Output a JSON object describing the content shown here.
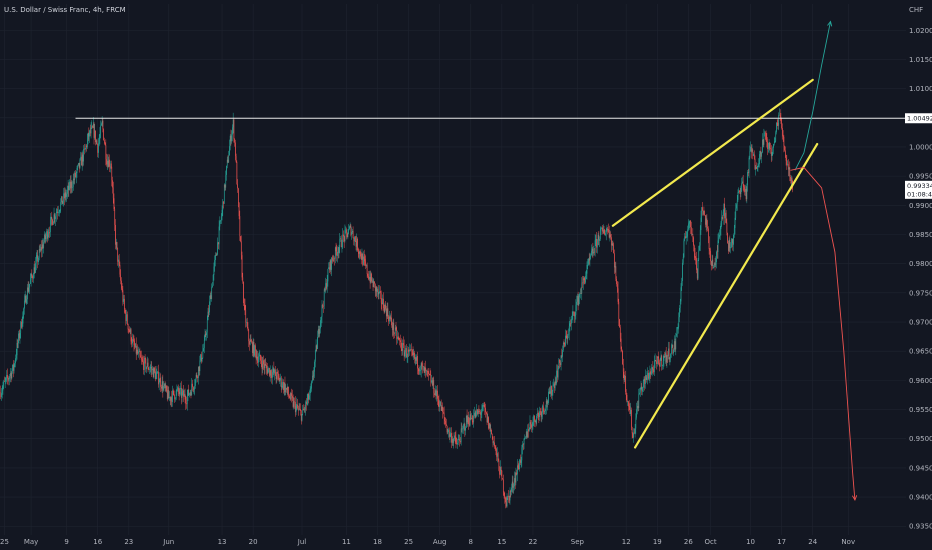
{
  "header": {
    "symbol_title": "U.S. Dollar / Swiss Franc, 4h, FRCM",
    "currency": "CHF"
  },
  "colors": {
    "background": "#131722",
    "grid": "#1f2430",
    "bull": "#26a69a",
    "bear": "#ef5350",
    "wedge": "#f2e94e",
    "resistance": "#e8e8e8",
    "projection_up": "#26a69a",
    "projection_down": "#ef5350",
    "price_tag_bg": "#ffffff",
    "price_tag_text": "#131722"
  },
  "price_tags": {
    "resistance_label": "1.00492",
    "current_price": "0.99334",
    "countdown": "01:08:45"
  },
  "chart_data": {
    "type": "candlestick",
    "title": "U.S. Dollar / Swiss Franc, 4h, FRCM",
    "ylabel": "CHF",
    "ylim": [
      0.9335,
      1.0245
    ],
    "y_ticks": [
      1.02,
      1.015,
      1.01,
      1.005,
      1.0,
      0.995,
      0.99,
      0.985,
      0.98,
      0.975,
      0.97,
      0.965,
      0.96,
      0.955,
      0.95,
      0.945,
      0.94,
      0.935
    ],
    "y_tick_labels": [
      "1.02000",
      "1.01500",
      "1.01000",
      "1.00500",
      "1.00000",
      "0.99500",
      "0.99000",
      "0.98500",
      "0.98000",
      "0.97500",
      "0.97000",
      "0.96500",
      "0.96000",
      "0.95500",
      "0.95000",
      "0.94500",
      "0.94000",
      "0.93500"
    ],
    "x_ticks": [
      {
        "label": "25",
        "day": -6
      },
      {
        "label": "May",
        "day": 0
      },
      {
        "label": "9",
        "day": 8
      },
      {
        "label": "16",
        "day": 15
      },
      {
        "label": "23",
        "day": 22
      },
      {
        "label": "Jun",
        "day": 31
      },
      {
        "label": "13",
        "day": 43
      },
      {
        "label": "20",
        "day": 50
      },
      {
        "label": "Jul",
        "day": 61
      },
      {
        "label": "11",
        "day": 71
      },
      {
        "label": "18",
        "day": 78
      },
      {
        "label": "25",
        "day": 85
      },
      {
        "label": "Aug",
        "day": 92
      },
      {
        "label": "8",
        "day": 99
      },
      {
        "label": "15",
        "day": 106
      },
      {
        "label": "22",
        "day": 113
      },
      {
        "label": "Sep",
        "day": 123
      },
      {
        "label": "12",
        "day": 134
      },
      {
        "label": "19",
        "day": 141
      },
      {
        "label": "26",
        "day": 148
      },
      {
        "label": "Oct",
        "day": 153
      },
      {
        "label": "10",
        "day": 162
      },
      {
        "label": "17",
        "day": 169
      },
      {
        "label": "24",
        "day": 176
      },
      {
        "label": "Nov",
        "day": 184
      }
    ],
    "x_range_days": [
      -7,
      197
    ],
    "price_path": [
      [
        -7,
        0.958
      ],
      [
        -4,
        0.962
      ],
      [
        -1,
        0.975
      ],
      [
        2,
        0.982
      ],
      [
        5,
        0.988
      ],
      [
        8,
        0.992
      ],
      [
        10,
        0.995
      ],
      [
        12,
        0.999
      ],
      [
        13,
        1.002
      ],
      [
        14,
        1.003
      ],
      [
        15,
        1.0
      ],
      [
        16,
        1.004
      ],
      [
        17,
        0.998
      ],
      [
        18,
        0.997
      ],
      [
        19,
        0.984
      ],
      [
        21,
        0.972
      ],
      [
        23,
        0.966
      ],
      [
        25,
        0.963
      ],
      [
        27,
        0.962
      ],
      [
        29,
        0.96
      ],
      [
        31,
        0.957
      ],
      [
        33,
        0.958
      ],
      [
        35,
        0.957
      ],
      [
        37,
        0.96
      ],
      [
        39,
        0.966
      ],
      [
        41,
        0.978
      ],
      [
        43,
        0.989
      ],
      [
        44,
        0.996
      ],
      [
        45,
        1.002
      ],
      [
        45.5,
        1.004
      ],
      [
        46,
        0.999
      ],
      [
        47,
        0.985
      ],
      [
        48,
        0.972
      ],
      [
        49,
        0.967
      ],
      [
        51,
        0.964
      ],
      [
        53,
        0.962
      ],
      [
        55,
        0.961
      ],
      [
        57,
        0.959
      ],
      [
        59,
        0.956
      ],
      [
        61,
        0.954
      ],
      [
        63,
        0.958
      ],
      [
        65,
        0.97
      ],
      [
        67,
        0.979
      ],
      [
        68,
        0.981
      ],
      [
        70,
        0.984
      ],
      [
        72,
        0.986
      ],
      [
        74,
        0.982
      ],
      [
        76,
        0.978
      ],
      [
        78,
        0.975
      ],
      [
        80,
        0.972
      ],
      [
        82,
        0.968
      ],
      [
        84,
        0.965
      ],
      [
        86,
        0.964
      ],
      [
        88,
        0.962
      ],
      [
        90,
        0.96
      ],
      [
        92,
        0.956
      ],
      [
        94,
        0.951
      ],
      [
        96,
        0.949
      ],
      [
        98,
        0.953
      ],
      [
        100,
        0.954
      ],
      [
        102,
        0.955
      ],
      [
        104,
        0.95
      ],
      [
        106,
        0.943
      ],
      [
        107,
        0.939
      ],
      [
        108,
        0.941
      ],
      [
        110,
        0.946
      ],
      [
        112,
        0.952
      ],
      [
        114,
        0.954
      ],
      [
        116,
        0.956
      ],
      [
        118,
        0.96
      ],
      [
        120,
        0.966
      ],
      [
        122,
        0.971
      ],
      [
        124,
        0.976
      ],
      [
        126,
        0.981
      ],
      [
        128,
        0.985
      ],
      [
        130,
        0.986
      ],
      [
        131,
        0.983
      ],
      [
        132,
        0.975
      ],
      [
        133,
        0.964
      ],
      [
        134,
        0.958
      ],
      [
        135,
        0.954
      ],
      [
        135.5,
        0.95
      ],
      [
        137,
        0.958
      ],
      [
        139,
        0.961
      ],
      [
        141,
        0.963
      ],
      [
        143,
        0.964
      ],
      [
        145,
        0.966
      ],
      [
        146,
        0.972
      ],
      [
        147,
        0.983
      ],
      [
        148,
        0.987
      ],
      [
        149,
        0.985
      ],
      [
        150,
        0.978
      ],
      [
        151,
        0.99
      ],
      [
        152,
        0.987
      ],
      [
        153,
        0.981
      ],
      [
        154,
        0.979
      ],
      [
        155,
        0.986
      ],
      [
        156,
        0.99
      ],
      [
        157,
        0.983
      ],
      [
        158,
        0.984
      ],
      [
        159,
        0.991
      ],
      [
        160,
        0.994
      ],
      [
        161,
        0.992
      ],
      [
        162,
        1.0
      ],
      [
        163,
        0.997
      ],
      [
        164,
        0.998
      ],
      [
        165,
        1.002
      ],
      [
        166,
        1.0
      ],
      [
        167,
        0.999
      ],
      [
        168,
        1.004
      ],
      [
        168.5,
        1.006
      ],
      [
        169,
        1.003
      ],
      [
        170,
        0.998
      ],
      [
        171,
        0.995
      ],
      [
        171.5,
        0.9933
      ]
    ],
    "resistance_level": 1.00492,
    "wedge_upper": [
      [
        131,
        0.9865
      ],
      [
        176,
        1.0115
      ]
    ],
    "wedge_lower": [
      [
        136,
        0.9485
      ],
      [
        177,
        1.0005
      ]
    ],
    "projection_up": [
      [
        172,
        0.996
      ],
      [
        174,
        0.999
      ],
      [
        176,
        1.006
      ],
      [
        178,
        1.014
      ],
      [
        180,
        1.0215
      ]
    ],
    "projection_down": [
      [
        171,
        0.996
      ],
      [
        174,
        0.9965
      ],
      [
        178,
        0.993
      ],
      [
        181,
        0.982
      ],
      [
        183,
        0.965
      ],
      [
        185,
        0.944
      ],
      [
        185.5,
        0.9395
      ]
    ],
    "current_price": 0.99334
  }
}
